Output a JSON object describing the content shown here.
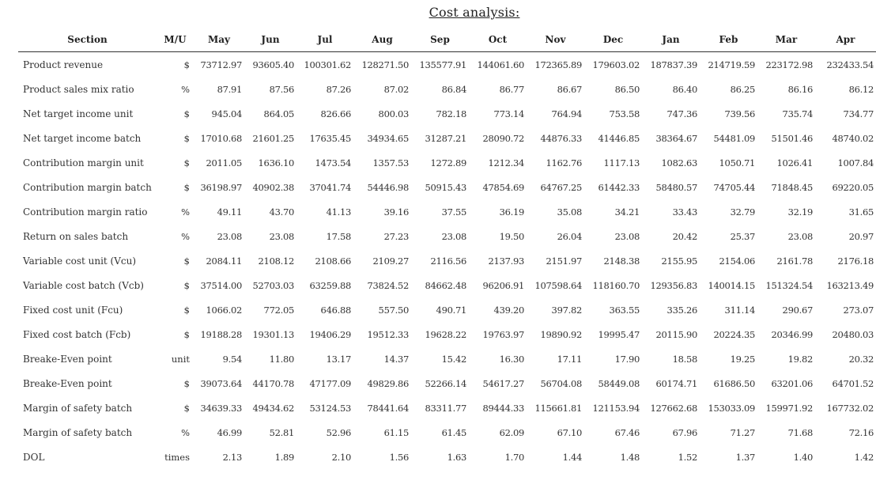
{
  "title": "Cost analysis:",
  "columns": [
    "Section",
    "M/U",
    "May",
    "Jun",
    "Jul",
    "Aug",
    "Sep",
    "Oct",
    "Nov",
    "Dec",
    "Jan",
    "Feb",
    "Mar",
    "Apr"
  ],
  "rows": [
    {
      "section": "Product revenue",
      "mu": "$",
      "values": [
        "73712.97",
        "93605.40",
        "100301.62",
        "128271.50",
        "135577.91",
        "144061.60",
        "172365.89",
        "179603.02",
        "187837.39",
        "214719.59",
        "223172.98",
        "232433.54"
      ]
    },
    {
      "section": "Product sales mix ratio",
      "mu": "%",
      "values": [
        "87.91",
        "87.56",
        "87.26",
        "87.02",
        "86.84",
        "86.77",
        "86.67",
        "86.50",
        "86.40",
        "86.25",
        "86.16",
        "86.12"
      ]
    },
    {
      "section": "Net target income unit",
      "mu": "$",
      "values": [
        "945.04",
        "864.05",
        "826.66",
        "800.03",
        "782.18",
        "773.14",
        "764.94",
        "753.58",
        "747.36",
        "739.56",
        "735.74",
        "734.77"
      ]
    },
    {
      "section": "Net target income batch",
      "mu": "$",
      "values": [
        "17010.68",
        "21601.25",
        "17635.45",
        "34934.65",
        "31287.21",
        "28090.72",
        "44876.33",
        "41446.85",
        "38364.67",
        "54481.09",
        "51501.46",
        "48740.02"
      ]
    },
    {
      "section": "Contribution margin unit",
      "mu": "$",
      "values": [
        "2011.05",
        "1636.10",
        "1473.54",
        "1357.53",
        "1272.89",
        "1212.34",
        "1162.76",
        "1117.13",
        "1082.63",
        "1050.71",
        "1026.41",
        "1007.84"
      ]
    },
    {
      "section": "Contribution margin batch",
      "mu": "$",
      "values": [
        "36198.97",
        "40902.38",
        "37041.74",
        "54446.98",
        "50915.43",
        "47854.69",
        "64767.25",
        "61442.33",
        "58480.57",
        "74705.44",
        "71848.45",
        "69220.05"
      ]
    },
    {
      "section": "Contribution margin ratio",
      "mu": "%",
      "values": [
        "49.11",
        "43.70",
        "41.13",
        "39.16",
        "37.55",
        "36.19",
        "35.08",
        "34.21",
        "33.43",
        "32.79",
        "32.19",
        "31.65"
      ]
    },
    {
      "section": "Return on sales batch",
      "mu": "%",
      "values": [
        "23.08",
        "23.08",
        "17.58",
        "27.23",
        "23.08",
        "19.50",
        "26.04",
        "23.08",
        "20.42",
        "25.37",
        "23.08",
        "20.97"
      ]
    },
    {
      "section": "Variable cost unit (Vcu)",
      "mu": "$",
      "values": [
        "2084.11",
        "2108.12",
        "2108.66",
        "2109.27",
        "2116.56",
        "2137.93",
        "2151.97",
        "2148.38",
        "2155.95",
        "2154.06",
        "2161.78",
        "2176.18"
      ]
    },
    {
      "section": "Variable cost batch (Vcb)",
      "mu": "$",
      "values": [
        "37514.00",
        "52703.03",
        "63259.88",
        "73824.52",
        "84662.48",
        "96206.91",
        "107598.64",
        "118160.70",
        "129356.83",
        "140014.15",
        "151324.54",
        "163213.49"
      ]
    },
    {
      "section": "Fixed cost unit (Fcu)",
      "mu": "$",
      "values": [
        "1066.02",
        "772.05",
        "646.88",
        "557.50",
        "490.71",
        "439.20",
        "397.82",
        "363.55",
        "335.26",
        "311.14",
        "290.67",
        "273.07"
      ]
    },
    {
      "section": "Fixed cost batch (Fcb)",
      "mu": "$",
      "values": [
        "19188.28",
        "19301.13",
        "19406.29",
        "19512.33",
        "19628.22",
        "19763.97",
        "19890.92",
        "19995.47",
        "20115.90",
        "20224.35",
        "20346.99",
        "20480.03"
      ]
    },
    {
      "section": "Breake-Even point",
      "mu": "unit",
      "values": [
        "9.54",
        "11.80",
        "13.17",
        "14.37",
        "15.42",
        "16.30",
        "17.11",
        "17.90",
        "18.58",
        "19.25",
        "19.82",
        "20.32"
      ]
    },
    {
      "section": "Breake-Even point",
      "mu": "$",
      "values": [
        "39073.64",
        "44170.78",
        "47177.09",
        "49829.86",
        "52266.14",
        "54617.27",
        "56704.08",
        "58449.08",
        "60174.71",
        "61686.50",
        "63201.06",
        "64701.52"
      ]
    },
    {
      "section": "Margin of safety batch",
      "mu": "$",
      "values": [
        "34639.33",
        "49434.62",
        "53124.53",
        "78441.64",
        "83311.77",
        "89444.33",
        "115661.81",
        "121153.94",
        "127662.68",
        "153033.09",
        "159971.92",
        "167732.02"
      ]
    },
    {
      "section": "Margin of safety batch",
      "mu": "%",
      "values": [
        "46.99",
        "52.81",
        "52.96",
        "61.15",
        "61.45",
        "62.09",
        "67.10",
        "67.46",
        "67.96",
        "71.27",
        "71.68",
        "72.16"
      ]
    },
    {
      "section": "DOL",
      "mu": "times",
      "values": [
        "2.13",
        "1.89",
        "2.10",
        "1.56",
        "1.63",
        "1.70",
        "1.44",
        "1.48",
        "1.52",
        "1.37",
        "1.40",
        "1.42"
      ]
    }
  ]
}
